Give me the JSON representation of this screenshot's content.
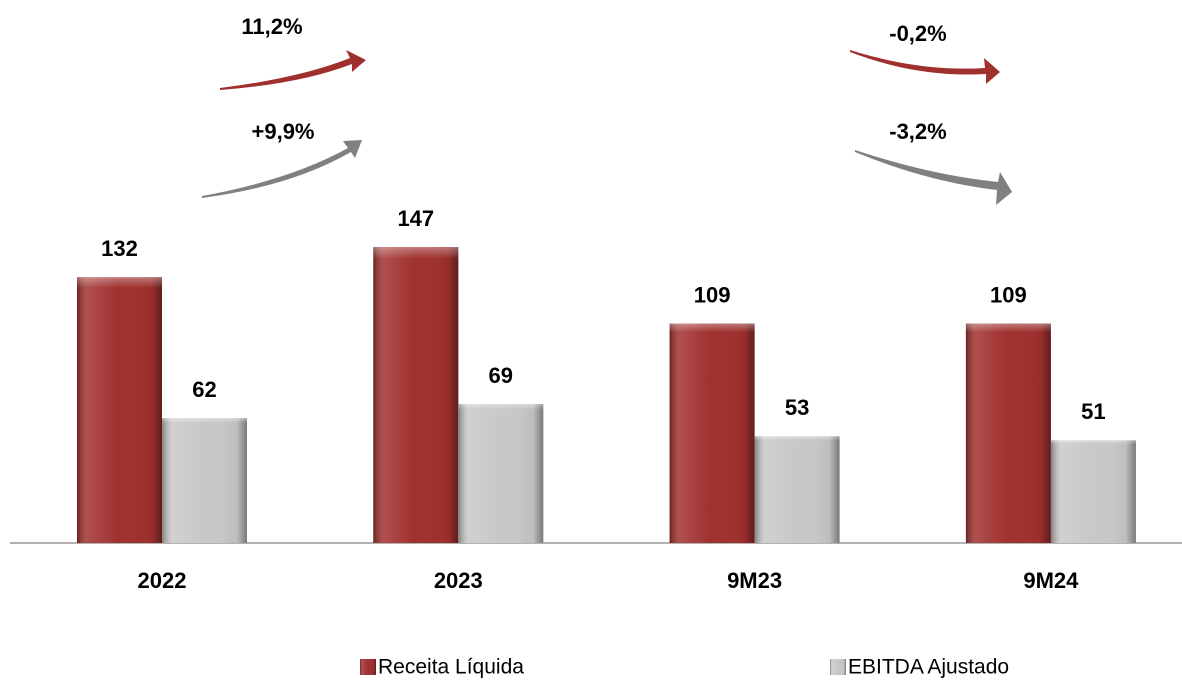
{
  "chart_data": {
    "type": "bar",
    "categories": [
      "2022",
      "2023",
      "9M23",
      "9M24"
    ],
    "series": [
      {
        "name": "Receita Líquida",
        "color": "#a0302e",
        "values": [
          132,
          147,
          109,
          109
        ]
      },
      {
        "name": "EBITDA Ajustado",
        "color": "#c8c8c8",
        "values": [
          62,
          69,
          53,
          51
        ]
      }
    ],
    "annotations": [
      "11,2%",
      "+9,9%",
      "-0,2%",
      "-3,2%"
    ]
  }
}
